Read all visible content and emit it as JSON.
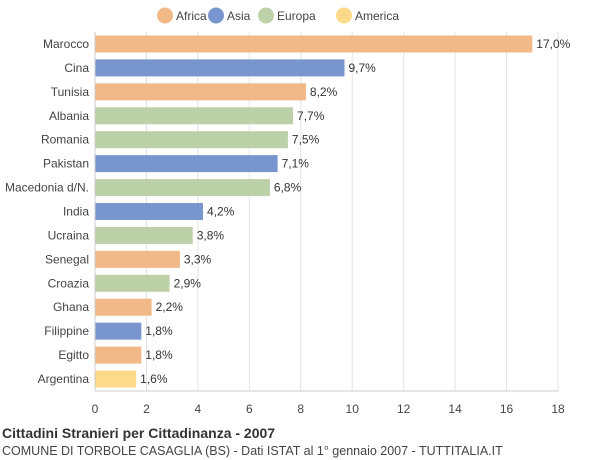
{
  "chart_data": {
    "type": "bar",
    "orientation": "horizontal",
    "title": "Cittadini Stranieri per Cittadinanza - 2007",
    "subtitle": "COMUNE DI TORBOLE CASAGLIA (BS) - Dati ISTAT al 1° gennaio 2007 - TUTTITALIA.IT",
    "xlim": [
      0,
      18
    ],
    "xticks": [
      0,
      2,
      4,
      6,
      8,
      10,
      12,
      14,
      16,
      18
    ],
    "grid": "vertical",
    "legend_position": "top",
    "legend": [
      {
        "name": "Africa",
        "color": "#f0b987"
      },
      {
        "name": "Asia",
        "color": "#7896cd"
      },
      {
        "name": "Europa",
        "color": "#bdd1a9"
      },
      {
        "name": "America",
        "color": "#fdd98a"
      }
    ],
    "bars": [
      {
        "category": "Marocco",
        "value": 17.0,
        "label": "17,0%",
        "group": "Africa"
      },
      {
        "category": "Cina",
        "value": 9.7,
        "label": "9,7%",
        "group": "Asia"
      },
      {
        "category": "Tunisia",
        "value": 8.2,
        "label": "8,2%",
        "group": "Africa"
      },
      {
        "category": "Albania",
        "value": 7.7,
        "label": "7,7%",
        "group": "Europa"
      },
      {
        "category": "Romania",
        "value": 7.5,
        "label": "7,5%",
        "group": "Europa"
      },
      {
        "category": "Pakistan",
        "value": 7.1,
        "label": "7,1%",
        "group": "Asia"
      },
      {
        "category": "Macedonia d/N.",
        "value": 6.8,
        "label": "6,8%",
        "group": "Europa"
      },
      {
        "category": "India",
        "value": 4.2,
        "label": "4,2%",
        "group": "Asia"
      },
      {
        "category": "Ucraina",
        "value": 3.8,
        "label": "3,8%",
        "group": "Europa"
      },
      {
        "category": "Senegal",
        "value": 3.3,
        "label": "3,3%",
        "group": "Africa"
      },
      {
        "category": "Croazia",
        "value": 2.9,
        "label": "2,9%",
        "group": "Europa"
      },
      {
        "category": "Ghana",
        "value": 2.2,
        "label": "2,2%",
        "group": "Africa"
      },
      {
        "category": "Filippine",
        "value": 1.8,
        "label": "1,8%",
        "group": "Asia"
      },
      {
        "category": "Egitto",
        "value": 1.8,
        "label": "1,8%",
        "group": "Africa"
      },
      {
        "category": "Argentina",
        "value": 1.6,
        "label": "1,6%",
        "group": "America"
      }
    ]
  }
}
